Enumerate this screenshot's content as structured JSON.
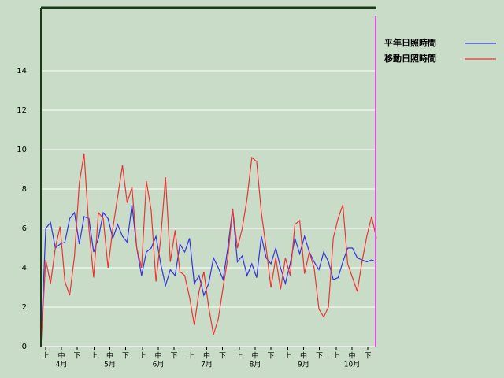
{
  "chart_data": {
    "type": "line",
    "ylim": [
      0,
      17.2
    ],
    "yticks": [
      0,
      2,
      4,
      6,
      8,
      10,
      12,
      14
    ],
    "grid": true,
    "periods": [
      "上",
      "中",
      "下",
      "上",
      "中",
      "下",
      "上",
      "中",
      "下",
      "上",
      "中",
      "下",
      "上",
      "中",
      "下",
      "上",
      "中",
      "下",
      "上",
      "中",
      "下"
    ],
    "months": [
      "4月",
      "5月",
      "6月",
      "7月",
      "8月",
      "9月",
      "10月"
    ],
    "series": [
      {
        "name": "平年日照時間",
        "color": "#3333dd",
        "values": [
          0,
          6.0,
          6.3,
          5.0,
          5.2,
          5.3,
          6.5,
          6.8,
          5.2,
          6.6,
          6.5,
          4.8,
          5.5,
          6.8,
          6.5,
          5.5,
          6.2,
          5.6,
          5.3,
          7.2,
          5.0,
          3.6,
          4.8,
          5.0,
          5.6,
          4.2,
          3.1,
          3.9,
          3.6,
          5.2,
          4.8,
          5.5,
          3.2,
          3.6,
          2.6,
          3.2,
          4.5,
          4.0,
          3.4,
          5.0,
          7.0,
          4.3,
          4.6,
          3.6,
          4.2,
          3.5,
          5.6,
          4.5,
          4.2,
          5.0,
          4.0,
          3.2,
          4.2,
          5.5,
          4.7,
          5.6,
          4.8,
          4.3,
          3.9,
          4.8,
          4.3,
          3.4,
          3.5,
          4.3,
          5.0,
          5.0,
          4.5,
          4.4,
          4.3,
          4.4,
          4.3
        ]
      },
      {
        "name": "移動日照時間",
        "color": "#ee3333",
        "values": [
          0,
          4.4,
          3.2,
          5.0,
          6.1,
          3.3,
          2.6,
          4.6,
          8.3,
          9.8,
          6.0,
          3.5,
          6.8,
          6.5,
          4.0,
          6.0,
          7.6,
          9.2,
          7.3,
          8.1,
          5.0,
          4.0,
          8.4,
          6.9,
          3.3,
          5.5,
          8.6,
          4.3,
          5.9,
          3.8,
          3.6,
          2.5,
          1.1,
          2.8,
          3.8,
          2.0,
          0.6,
          1.4,
          3.0,
          4.5,
          7.0,
          5.0,
          6.0,
          7.5,
          9.6,
          9.4,
          6.8,
          5.0,
          3.0,
          4.5,
          2.9,
          4.5,
          3.6,
          6.2,
          6.4,
          3.7,
          4.8,
          4.0,
          1.9,
          1.5,
          2.0,
          5.5,
          6.5,
          7.2,
          4.2,
          3.5,
          2.8,
          4.3,
          5.6,
          6.6,
          5.5
        ]
      }
    ]
  }
}
